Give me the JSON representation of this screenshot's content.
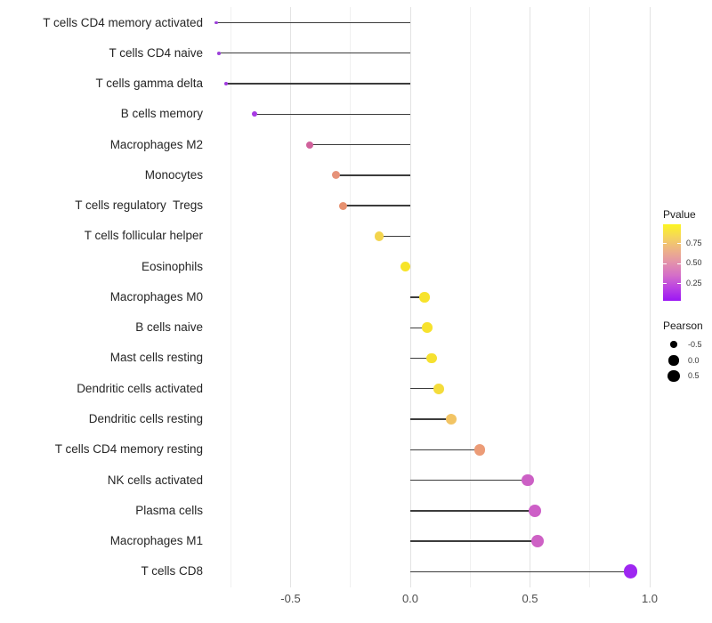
{
  "chart_data": {
    "type": "lollipop",
    "title": "",
    "xlabel": "",
    "ylabel": "",
    "x_axis": {
      "ticks": [
        -0.5,
        0.0,
        0.5,
        1.0
      ],
      "tick_labels": [
        "-0.5",
        "0.0",
        "0.5",
        "1.0"
      ],
      "minor_grid_step": 0.25,
      "range": [
        -0.83,
        1.04
      ]
    },
    "grid": "vertical only, light gray",
    "stem_anchor": 0.0,
    "rows": [
      {
        "label": "T cells CD4 memory activated",
        "pearson": -0.81,
        "color": "#9C41D9"
      },
      {
        "label": "T cells CD4 naive",
        "pearson": -0.8,
        "color": "#9C41D9"
      },
      {
        "label": "T cells gamma delta",
        "pearson": -0.77,
        "color": "#A03BDE"
      },
      {
        "label": "B cells memory",
        "pearson": -0.65,
        "color": "#A83BE4"
      },
      {
        "label": "Macrophages M2",
        "pearson": -0.42,
        "color": "#D0619B"
      },
      {
        "label": "Monocytes",
        "pearson": -0.31,
        "color": "#E69279"
      },
      {
        "label": "T cells regulatory  Tregs",
        "pearson": -0.28,
        "color": "#E79170"
      },
      {
        "label": "T cells follicular helper",
        "pearson": -0.13,
        "color": "#F3D44D"
      },
      {
        "label": "Eosinophils",
        "pearson": -0.02,
        "color": "#F7E428"
      },
      {
        "label": "Macrophages M0",
        "pearson": 0.06,
        "color": "#F7E32C"
      },
      {
        "label": "B cells naive",
        "pearson": 0.07,
        "color": "#F7E22D"
      },
      {
        "label": "Mast cells resting",
        "pearson": 0.09,
        "color": "#F6E130"
      },
      {
        "label": "Dendritic cells activated",
        "pearson": 0.12,
        "color": "#F4DC3B"
      },
      {
        "label": "Dendritic cells resting",
        "pearson": 0.17,
        "color": "#F2C464"
      },
      {
        "label": "T cells CD4 memory resting",
        "pearson": 0.29,
        "color": "#EC9C77"
      },
      {
        "label": "NK cells activated",
        "pearson": 0.49,
        "color": "#CC60C5"
      },
      {
        "label": "Plasma cells",
        "pearson": 0.52,
        "color": "#CD5FC7"
      },
      {
        "label": "Macrophages M1",
        "pearson": 0.53,
        "color": "#CE61C5"
      },
      {
        "label": "T cells CD8",
        "pearson": 0.92,
        "color": "#9E27F1"
      }
    ],
    "legend": {
      "pvalue": {
        "title": "Pvalue",
        "tick_labels": [
          "0.75",
          "0.50",
          "0.25"
        ],
        "gradient_stops": [
          "#FCF521",
          "#F5D55C",
          "#EDB386",
          "#E392AB",
          "#D46FC8",
          "#BA41E3",
          "#9B16F4"
        ]
      },
      "pearson": {
        "title": "Pearson",
        "sizes": [
          {
            "label": "-0.5",
            "value": -0.5
          },
          {
            "label": "0.0",
            "value": 0.0
          },
          {
            "label": "0.5",
            "value": 0.5
          }
        ]
      }
    }
  }
}
